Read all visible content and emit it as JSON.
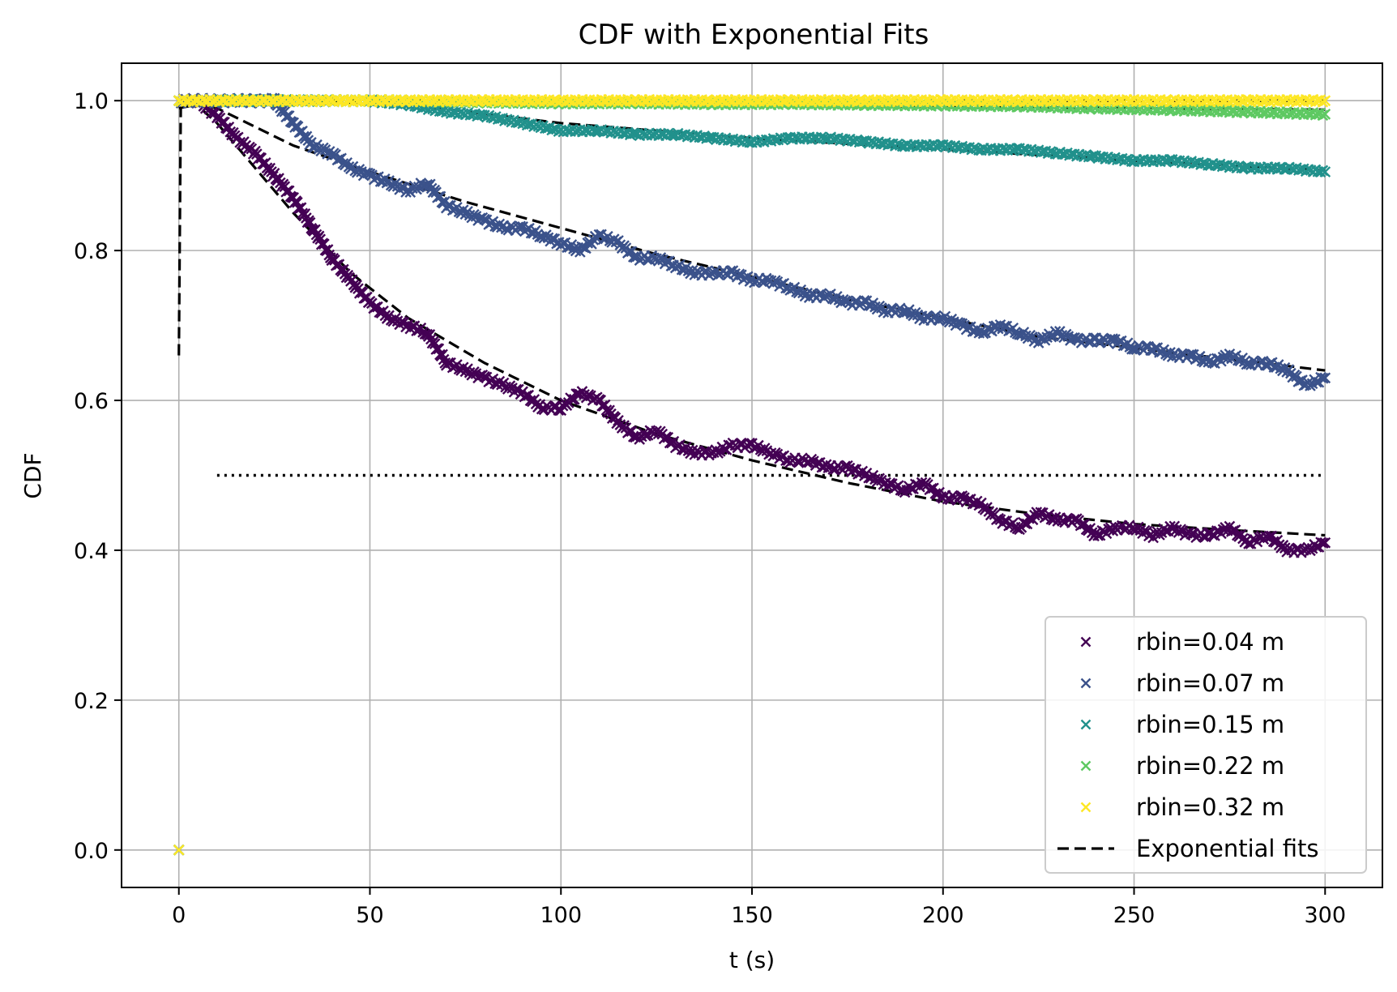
{
  "chart_data": {
    "type": "scatter",
    "title": "CDF with Exponential Fits",
    "xlabel": "t (s)",
    "ylabel": "CDF",
    "xlim": [
      -15,
      315
    ],
    "ylim": [
      -0.05,
      1.05
    ],
    "xticks": [
      0,
      50,
      100,
      150,
      200,
      250,
      300
    ],
    "xtick_labels": [
      "0",
      "50",
      "100",
      "150",
      "200",
      "250",
      "300"
    ],
    "yticks": [
      0.0,
      0.2,
      0.4,
      0.6,
      0.8,
      1.0
    ],
    "ytick_labels": [
      "0.0",
      "0.2",
      "0.4",
      "0.6",
      "0.8",
      "1.0"
    ],
    "grid": true,
    "legend_position": "lower-right",
    "marker": "x",
    "series": [
      {
        "name": "rbin=0.04 m",
        "color": "#440154",
        "x": [
          0,
          5,
          10,
          15,
          20,
          25,
          30,
          35,
          40,
          45,
          50,
          55,
          60,
          65,
          70,
          75,
          80,
          85,
          90,
          95,
          100,
          105,
          110,
          115,
          120,
          125,
          130,
          135,
          140,
          145,
          150,
          155,
          160,
          165,
          170,
          175,
          180,
          185,
          190,
          195,
          200,
          205,
          210,
          215,
          220,
          225,
          230,
          235,
          240,
          245,
          250,
          255,
          260,
          265,
          270,
          275,
          280,
          285,
          290,
          295,
          300
        ],
        "y": [
          1.0,
          1.0,
          0.98,
          0.95,
          0.93,
          0.9,
          0.87,
          0.83,
          0.79,
          0.76,
          0.73,
          0.71,
          0.7,
          0.69,
          0.65,
          0.64,
          0.63,
          0.62,
          0.61,
          0.59,
          0.59,
          0.61,
          0.6,
          0.57,
          0.55,
          0.56,
          0.54,
          0.53,
          0.53,
          0.54,
          0.54,
          0.53,
          0.52,
          0.52,
          0.51,
          0.51,
          0.5,
          0.49,
          0.48,
          0.49,
          0.47,
          0.47,
          0.46,
          0.44,
          0.43,
          0.45,
          0.44,
          0.44,
          0.42,
          0.43,
          0.43,
          0.42,
          0.43,
          0.42,
          0.42,
          0.43,
          0.41,
          0.42,
          0.4,
          0.4,
          0.41
        ]
      },
      {
        "name": "rbin=0.07 m",
        "color": "#3b528b",
        "x": [
          0,
          5,
          10,
          15,
          20,
          25,
          30,
          35,
          40,
          45,
          50,
          55,
          60,
          65,
          70,
          75,
          80,
          85,
          90,
          95,
          100,
          105,
          110,
          115,
          120,
          125,
          130,
          135,
          140,
          145,
          150,
          155,
          160,
          165,
          170,
          175,
          180,
          185,
          190,
          195,
          200,
          205,
          210,
          215,
          220,
          225,
          230,
          235,
          240,
          245,
          250,
          255,
          260,
          265,
          270,
          275,
          280,
          285,
          290,
          295,
          300
        ],
        "y": [
          1.0,
          1.0,
          1.0,
          1.0,
          1.0,
          1.0,
          0.97,
          0.94,
          0.93,
          0.91,
          0.9,
          0.89,
          0.88,
          0.89,
          0.86,
          0.85,
          0.84,
          0.83,
          0.83,
          0.82,
          0.81,
          0.8,
          0.82,
          0.81,
          0.79,
          0.79,
          0.78,
          0.77,
          0.77,
          0.77,
          0.76,
          0.76,
          0.75,
          0.74,
          0.74,
          0.73,
          0.73,
          0.72,
          0.72,
          0.71,
          0.71,
          0.7,
          0.69,
          0.7,
          0.69,
          0.68,
          0.69,
          0.68,
          0.68,
          0.68,
          0.67,
          0.67,
          0.66,
          0.66,
          0.65,
          0.66,
          0.65,
          0.65,
          0.64,
          0.62,
          0.63
        ]
      },
      {
        "name": "rbin=0.15 m",
        "color": "#21918c",
        "x": [
          0,
          10,
          20,
          30,
          40,
          50,
          60,
          70,
          80,
          90,
          100,
          110,
          120,
          130,
          140,
          150,
          160,
          170,
          180,
          190,
          200,
          210,
          220,
          230,
          240,
          250,
          260,
          270,
          280,
          290,
          300
        ],
        "y": [
          1.0,
          1.0,
          1.0,
          1.0,
          1.0,
          1.0,
          0.995,
          0.985,
          0.98,
          0.97,
          0.96,
          0.96,
          0.955,
          0.955,
          0.95,
          0.945,
          0.95,
          0.95,
          0.945,
          0.94,
          0.94,
          0.935,
          0.935,
          0.93,
          0.925,
          0.92,
          0.92,
          0.915,
          0.91,
          0.91,
          0.905
        ]
      },
      {
        "name": "rbin=0.22 m",
        "color": "#5ec962",
        "x": [
          0,
          20,
          40,
          60,
          80,
          100,
          120,
          140,
          160,
          180,
          200,
          220,
          240,
          260,
          280,
          300
        ],
        "y": [
          1.0,
          1.0,
          1.0,
          1.0,
          0.998,
          0.997,
          0.997,
          0.996,
          0.996,
          0.995,
          0.994,
          0.993,
          0.99,
          0.988,
          0.985,
          0.982
        ]
      },
      {
        "name": "rbin=0.32 m",
        "color": "#fde725",
        "x": [
          0,
          20,
          40,
          60,
          80,
          100,
          120,
          140,
          160,
          180,
          200,
          220,
          240,
          260,
          280,
          300
        ],
        "y": [
          1.0,
          1.0,
          1.0,
          1.0,
          1.0,
          1.0,
          1.0,
          1.0,
          1.0,
          1.0,
          1.0,
          1.0,
          1.0,
          1.0,
          1.0,
          1.0
        ]
      }
    ],
    "outlier_points": {
      "x": [
        0
      ],
      "y": [
        0.0
      ]
    },
    "fit_lines": {
      "name": "Exponential fits",
      "color": "#000000",
      "style": "dashed",
      "lines": [
        {
          "x": [
            0,
            0.5,
            2,
            5,
            10,
            20,
            30,
            45,
            60,
            80,
            100,
            125,
            150,
            175,
            200,
            225,
            250,
            275,
            300
          ],
          "y": [
            0.66,
            0.99,
            0.995,
            0.993,
            0.97,
            0.91,
            0.85,
            0.77,
            0.71,
            0.65,
            0.6,
            0.555,
            0.52,
            0.49,
            0.465,
            0.448,
            0.435,
            0.427,
            0.42
          ]
        },
        {
          "x": [
            0,
            5,
            10,
            30,
            50,
            75,
            100,
            125,
            150,
            175,
            200,
            225,
            250,
            275,
            300
          ],
          "y": [
            0.99,
            0.995,
            0.99,
            0.94,
            0.905,
            0.865,
            0.83,
            0.795,
            0.765,
            0.735,
            0.71,
            0.685,
            0.67,
            0.655,
            0.64
          ]
        },
        {
          "x": [
            0,
            60,
            100,
            150,
            200,
            250,
            300
          ],
          "y": [
            1.0,
            0.995,
            0.97,
            0.95,
            0.935,
            0.92,
            0.907
          ]
        },
        {
          "x": [
            0,
            100,
            200,
            300
          ],
          "y": [
            1.0,
            0.996,
            0.992,
            0.988
          ]
        },
        {
          "x": [
            0,
            300
          ],
          "y": [
            1.0,
            1.0
          ]
        }
      ]
    },
    "reference_line": {
      "y": 0.5,
      "x": [
        10,
        300
      ],
      "style": "dotted",
      "color": "#000000"
    }
  }
}
